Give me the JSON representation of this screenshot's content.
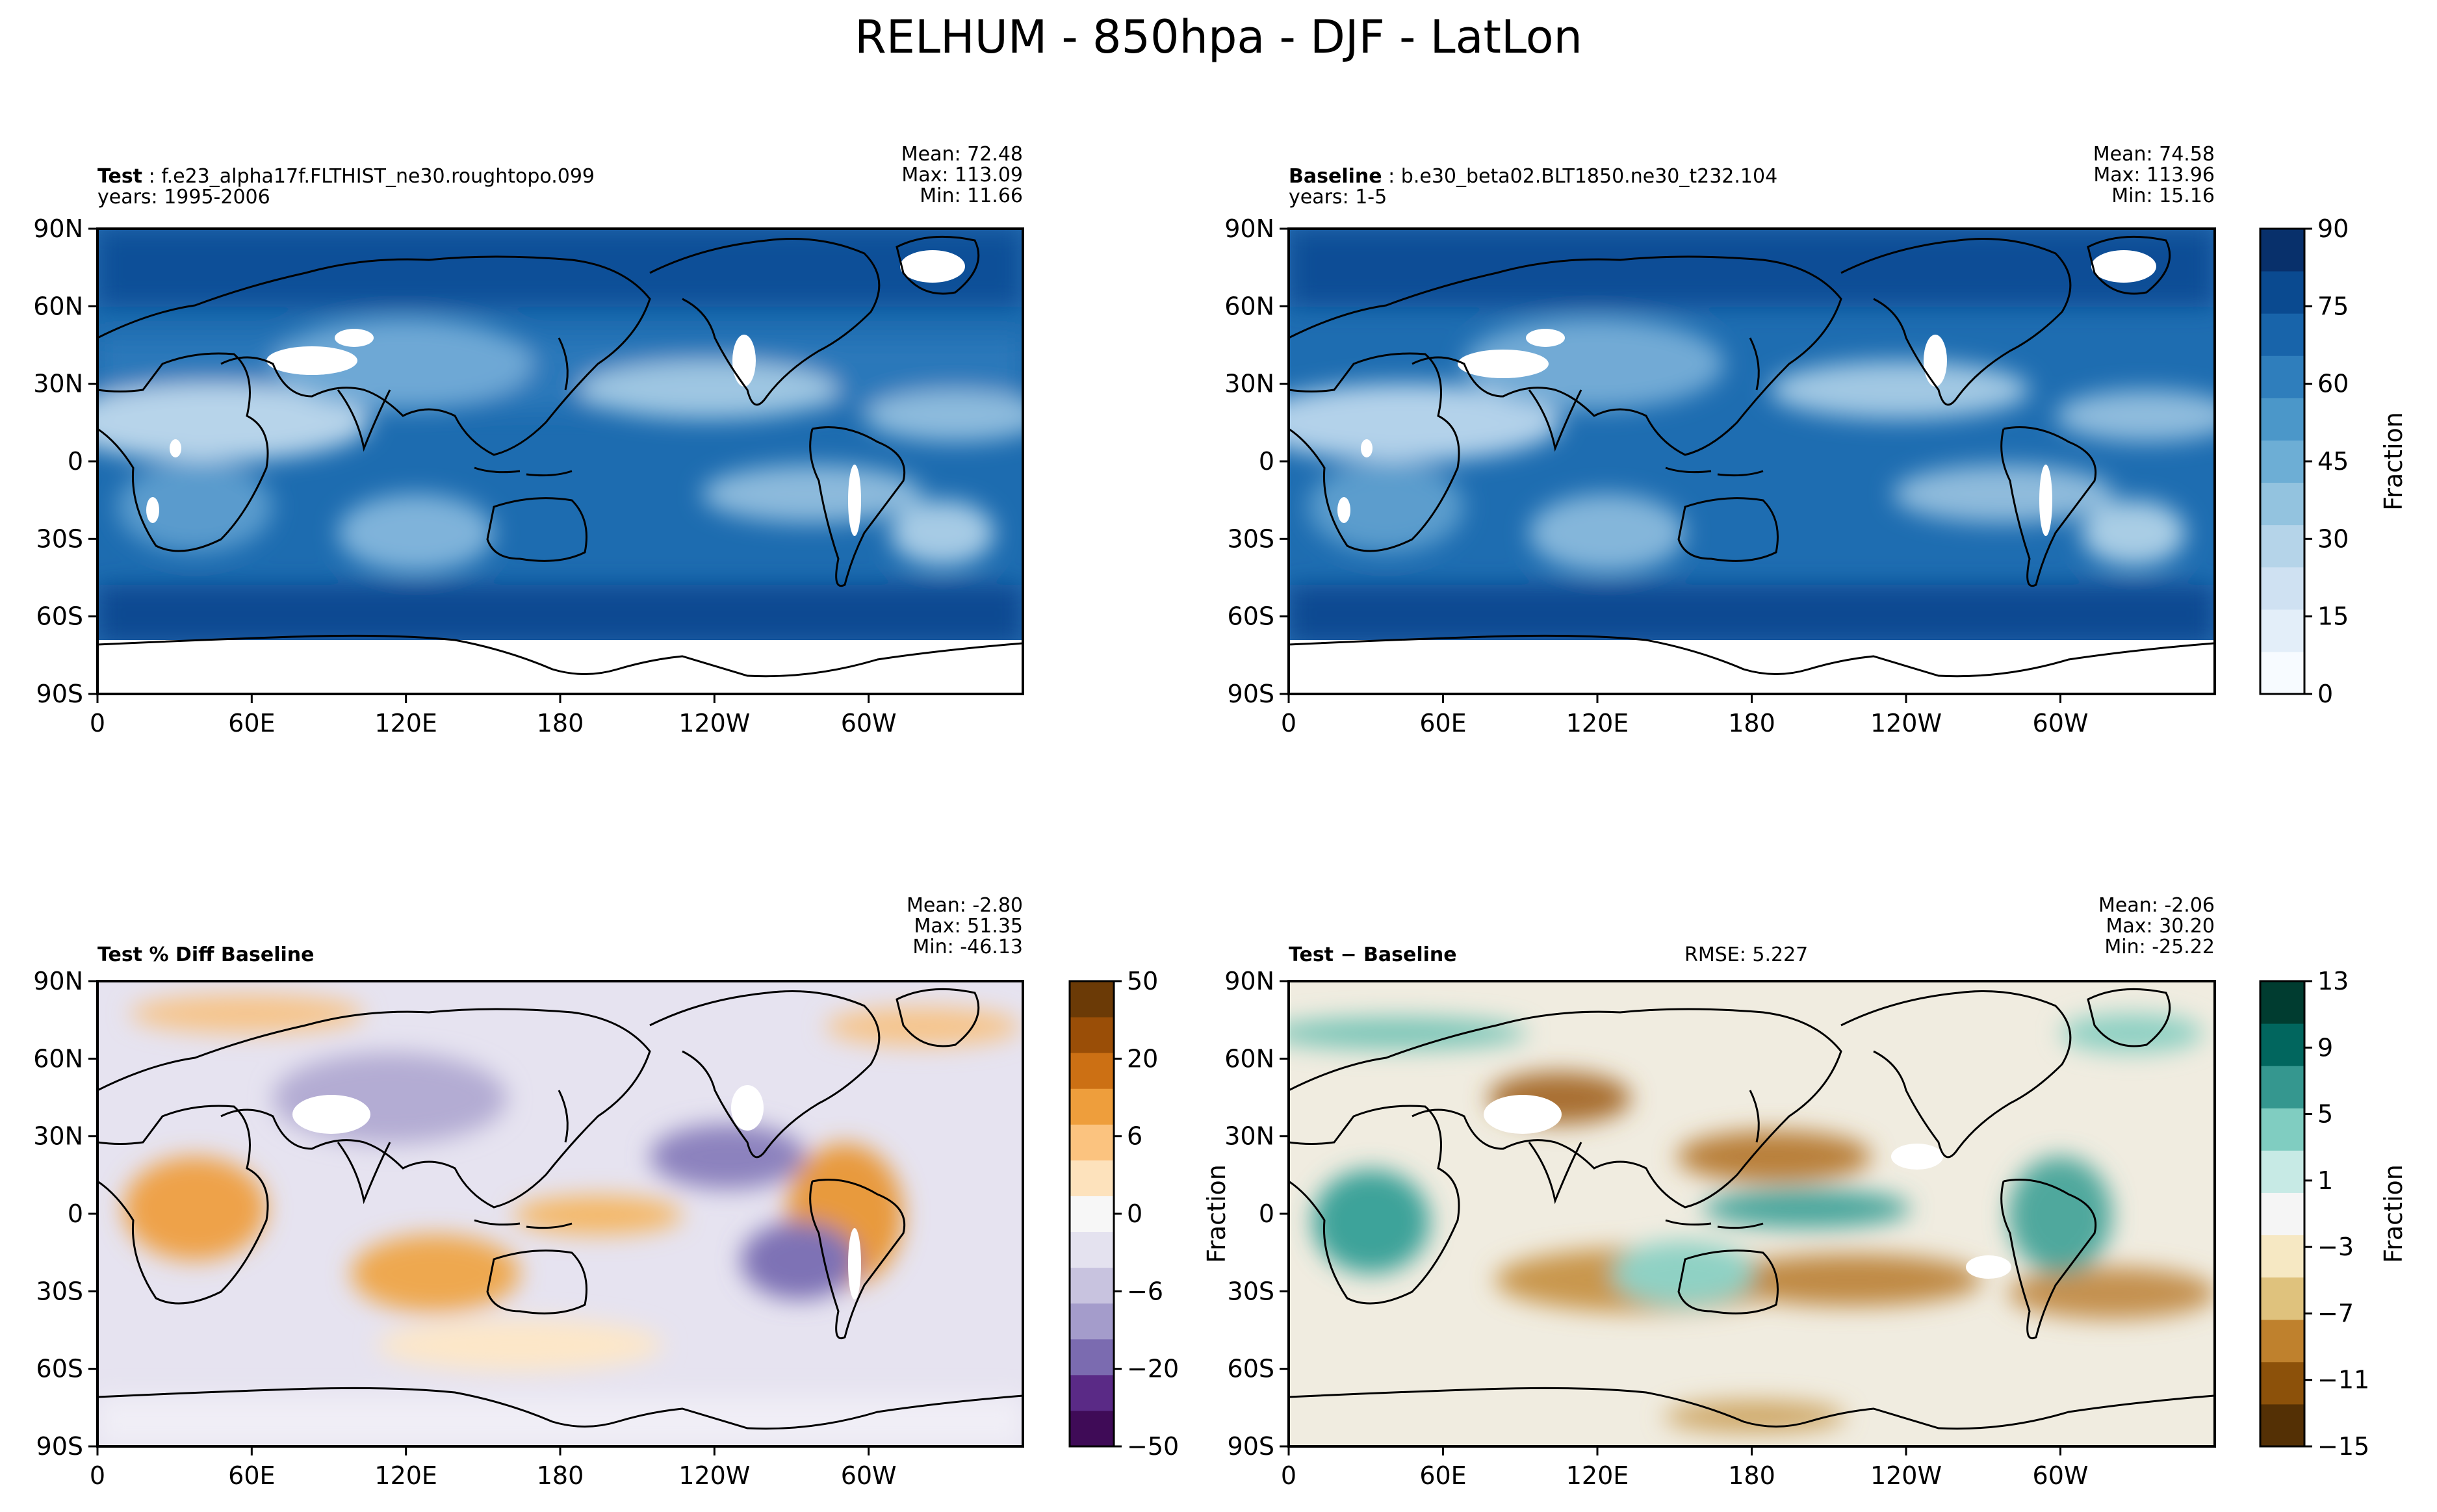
{
  "figure": {
    "title": "RELHUM - 850hpa - DJF - LatLon"
  },
  "panels": {
    "test": {
      "label": "Test",
      "name": "f.e23_alpha17f.FLTHIST_ne30.roughtopo.099",
      "years": "years: 1995-2006",
      "mean": "Mean: 72.48",
      "max": "Max: 113.09",
      "min": "Min: 11.66"
    },
    "baseline": {
      "label": "Baseline",
      "name": "b.e30_beta02.BLT1850.ne30_t232.104",
      "years": "years: 1-5",
      "mean": "Mean: 74.58",
      "max": "Max: 113.96",
      "min": "Min: 15.16"
    },
    "pct_diff": {
      "label": "Test % Diff Baseline",
      "mean": "Mean: -2.80",
      "max": "Max: 51.35",
      "min": "Min: -46.13"
    },
    "diff": {
      "label": "Test − Baseline",
      "rmse": "RMSE: 5.227",
      "ylabel": "Fraction",
      "mean": "Mean: -2.06",
      "max": "Max: 30.20",
      "min": "Min: -25.22"
    }
  },
  "axes": {
    "lat_ticks": [
      "90N",
      "60N",
      "30N",
      "0",
      "30S",
      "60S",
      "90S"
    ],
    "lon_ticks": [
      "0",
      "60E",
      "120E",
      "180",
      "120W",
      "60W"
    ]
  },
  "colorbars": {
    "abs": {
      "label": "Fraction",
      "ticks": [
        "0",
        "15",
        "30",
        "45",
        "60",
        "75",
        "90"
      ]
    },
    "pct": {
      "ticks": [
        "−50",
        "−20",
        "−6",
        "0",
        "6",
        "20",
        "50"
      ]
    },
    "diff": {
      "label": "Fraction",
      "ticks": [
        "−15",
        "−11",
        "−7",
        "−3",
        "1",
        "5",
        "9",
        "13"
      ]
    }
  },
  "colors": {
    "blues": [
      "#f7fbff",
      "#e3eef9",
      "#cfe1f2",
      "#b5d4e9",
      "#93c3df",
      "#6daed5",
      "#4b97c9",
      "#2f7ebc",
      "#1864aa",
      "#0a4a90",
      "#08306b"
    ],
    "purple_orange": [
      "#3f0b57",
      "#5a2a86",
      "#7b6bb0",
      "#a49ccb",
      "#c8c3df",
      "#e4e2ef",
      "#f7f7f7",
      "#fde2bc",
      "#fbc37f",
      "#ee9e3c",
      "#cc7014",
      "#9a4e07",
      "#6b3a06"
    ],
    "brown_teal": [
      "#543005",
      "#8c510a",
      "#bf812d",
      "#dfc27d",
      "#f6e8c3",
      "#f5f5f5",
      "#c7eae5",
      "#80cdc1",
      "#35978f",
      "#01665e",
      "#003c30"
    ]
  },
  "chart_data": [
    {
      "type": "heatmap",
      "title": "Test",
      "subtitle": "f.e23_alpha17f.FLTHIST_ne30.roughtopo.099",
      "years": "1995-2006",
      "x": [
        "0",
        "60E",
        "120E",
        "180",
        "120W",
        "60W"
      ],
      "y": [
        "90N",
        "60N",
        "30N",
        "0",
        "30S",
        "60S",
        "90S"
      ],
      "xlim": [
        0,
        360
      ],
      "ylim": [
        -90,
        90
      ],
      "stats": {
        "mean": 72.48,
        "max": 113.09,
        "min": 11.66
      },
      "colorbar": {
        "label": "Fraction",
        "range": [
          0,
          100
        ]
      }
    },
    {
      "type": "heatmap",
      "title": "Baseline",
      "subtitle": "b.e30_beta02.BLT1850.ne30_t232.104",
      "years": "1-5",
      "x": [
        "0",
        "60E",
        "120E",
        "180",
        "120W",
        "60W"
      ],
      "y": [
        "90N",
        "60N",
        "30N",
        "0",
        "30S",
        "60S",
        "90S"
      ],
      "xlim": [
        0,
        360
      ],
      "ylim": [
        -90,
        90
      ],
      "stats": {
        "mean": 74.58,
        "max": 113.96,
        "min": 15.16
      },
      "colorbar": {
        "label": "Fraction",
        "range": [
          0,
          100
        ]
      }
    },
    {
      "type": "heatmap",
      "title": "Test % Diff Baseline",
      "x": [
        "0",
        "60E",
        "120E",
        "180",
        "120W",
        "60W"
      ],
      "y": [
        "90N",
        "60N",
        "30N",
        "0",
        "30S",
        "60S",
        "90S"
      ],
      "xlim": [
        0,
        360
      ],
      "ylim": [
        -90,
        90
      ],
      "stats": {
        "mean": -2.8,
        "max": 51.35,
        "min": -46.13
      },
      "colorbar": {
        "range": [
          -60,
          60
        ]
      }
    },
    {
      "type": "heatmap",
      "title": "Test − Baseline",
      "rmse": 5.227,
      "ylabel": "Fraction",
      "x": [
        "0",
        "60E",
        "120E",
        "180",
        "120W",
        "60W"
      ],
      "y": [
        "90N",
        "60N",
        "30N",
        "0",
        "30S",
        "60S",
        "90S"
      ],
      "xlim": [
        0,
        360
      ],
      "ylim": [
        -90,
        90
      ],
      "stats": {
        "mean": -2.06,
        "max": 30.2,
        "min": -25.22
      },
      "colorbar": {
        "label": "Fraction",
        "range": [
          -15,
          13
        ]
      }
    }
  ]
}
